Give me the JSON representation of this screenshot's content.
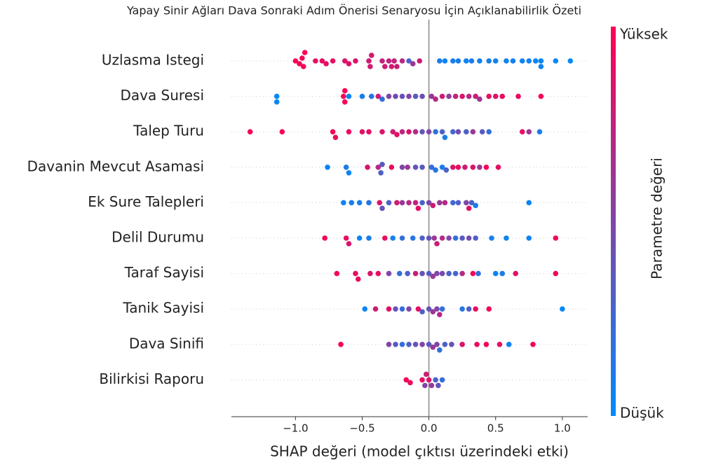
{
  "chart_data": {
    "type": "beeswarm",
    "title": "Yapay Sinir Ağları Dava Sonraki Adım Önerisi Senaryosu İçin Açıklanabilirlik Özeti",
    "x_label": "SHAP değeri (model çıktısı üzerindeki etki)",
    "xlim": [
      -1.48,
      1.19
    ],
    "xticks": [
      {
        "value": -1,
        "label": "−1.0"
      },
      {
        "value": -0.5,
        "label": "−0.5"
      },
      {
        "value": 0,
        "label": "0.0"
      },
      {
        "value": 0.5,
        "label": "0.5"
      },
      {
        "value": 1,
        "label": "1.0"
      }
    ],
    "categories": [
      "Uzlasma Istegi",
      "Dava Suresi",
      "Talep Turu",
      "Davanin Mevcut Asamasi",
      "Ek Sure Talepleri",
      "Delil Durumu",
      "Taraf Sayisi",
      "Tanik Sayisi",
      "Dava Sinifi",
      "Bilirkisi Raporu"
    ],
    "values": [
      [
        -1.0,
        -0.97,
        -0.95,
        -0.94,
        -0.93,
        -0.85,
        -0.8,
        -0.77,
        -0.72,
        -0.63,
        -0.6,
        -0.55,
        -0.45,
        -0.44,
        -0.43,
        -0.35,
        -0.33,
        -0.3,
        -0.28,
        -0.26,
        -0.24,
        -0.2,
        -0.15,
        -0.12,
        -0.07,
        0.08,
        0.12,
        0.18,
        0.22,
        0.28,
        0.32,
        0.38,
        0.45,
        0.5,
        0.58,
        0.63,
        0.7,
        0.75,
        0.8,
        0.84,
        0.84,
        0.95,
        1.06
      ],
      [
        -1.14,
        -1.14,
        -0.64,
        -0.63,
        -0.63,
        -0.6,
        -0.5,
        -0.43,
        -0.38,
        -0.35,
        -0.3,
        -0.25,
        -0.2,
        -0.15,
        -0.1,
        -0.05,
        0.02,
        0.05,
        0.1,
        0.15,
        0.2,
        0.25,
        0.3,
        0.35,
        0.38,
        0.45,
        0.5,
        0.55,
        0.67,
        0.84
      ],
      [
        -1.34,
        -1.1,
        -0.72,
        -0.7,
        -0.6,
        -0.5,
        -0.45,
        -0.35,
        -0.27,
        -0.24,
        -0.2,
        -0.15,
        -0.1,
        -0.05,
        0.0,
        0.05,
        0.1,
        0.12,
        0.18,
        0.22,
        0.28,
        0.33,
        0.4,
        0.45,
        0.7,
        0.75,
        0.83
      ],
      [
        -0.76,
        -0.62,
        -0.6,
        -0.46,
        -0.38,
        -0.36,
        -0.35,
        -0.28,
        -0.2,
        -0.16,
        -0.1,
        -0.05,
        0.02,
        0.05,
        0.1,
        0.13,
        0.18,
        0.22,
        0.27,
        0.33,
        0.38,
        0.43,
        0.52
      ],
      [
        -0.64,
        -0.58,
        -0.52,
        -0.45,
        -0.37,
        -0.35,
        -0.3,
        -0.24,
        -0.2,
        -0.15,
        -0.1,
        -0.08,
        -0.05,
        0.0,
        0.03,
        0.08,
        0.12,
        0.18,
        0.22,
        0.28,
        0.3,
        0.32,
        0.35,
        0.75
      ],
      [
        -0.78,
        -0.62,
        -0.6,
        -0.52,
        -0.45,
        -0.33,
        -0.27,
        -0.2,
        -0.12,
        -0.05,
        0.0,
        0.04,
        0.06,
        0.1,
        0.15,
        0.2,
        0.25,
        0.3,
        0.35,
        0.47,
        0.58,
        0.75,
        0.95
      ],
      [
        -0.69,
        -0.55,
        -0.53,
        -0.44,
        -0.38,
        -0.3,
        -0.22,
        -0.16,
        -0.1,
        -0.05,
        0.0,
        0.03,
        0.06,
        0.1,
        0.15,
        0.2,
        0.25,
        0.33,
        0.37,
        0.5,
        0.55,
        0.65,
        0.95
      ],
      [
        -0.48,
        -0.4,
        -0.3,
        -0.25,
        -0.2,
        -0.15,
        -0.08,
        -0.05,
        0.0,
        0.03,
        0.06,
        0.08,
        0.1,
        0.25,
        0.3,
        0.35,
        0.45,
        1.0
      ],
      [
        -0.66,
        -0.3,
        -0.25,
        -0.2,
        -0.15,
        -0.1,
        -0.05,
        0.0,
        0.03,
        0.06,
        0.08,
        0.12,
        0.17,
        0.25,
        0.36,
        0.43,
        0.53,
        0.6,
        0.78
      ],
      [
        -0.17,
        -0.14,
        -0.05,
        -0.03,
        0.0,
        0.02,
        0.05,
        0.07,
        0.1,
        -0.02
      ]
    ],
    "feature_values": [
      [
        0.98,
        0.95,
        0.97,
        0.96,
        0.99,
        0.9,
        0.92,
        0.88,
        0.9,
        0.85,
        0.87,
        0.85,
        0.82,
        0.8,
        0.84,
        0.78,
        0.8,
        0.75,
        0.82,
        0.77,
        0.79,
        0.72,
        0.3,
        0.6,
        0.8,
        0.1,
        0.05,
        0.08,
        0.1,
        0.05,
        0.12,
        0.08,
        0.1,
        0.06,
        0.05,
        0.08,
        0.04,
        0.06,
        0.02,
        0.03,
        0.05,
        0.02,
        0.01
      ],
      [
        0.02,
        0.03,
        0.98,
        0.97,
        0.99,
        0.05,
        0.1,
        0.15,
        0.8,
        0.2,
        0.5,
        0.45,
        0.4,
        0.5,
        0.35,
        0.4,
        0.6,
        0.7,
        0.8,
        0.55,
        0.75,
        0.85,
        0.7,
        0.8,
        0.6,
        0.9,
        0.88,
        0.92,
        0.9,
        0.95
      ],
      [
        0.98,
        0.97,
        0.95,
        0.9,
        0.92,
        0.88,
        0.9,
        0.85,
        0.8,
        0.9,
        0.75,
        0.85,
        0.7,
        0.4,
        0.5,
        0.2,
        0.3,
        0.1,
        0.25,
        0.45,
        0.3,
        0.6,
        0.35,
        0.2,
        0.9,
        0.6,
        0.1
      ],
      [
        0.05,
        0.1,
        0.05,
        0.85,
        0.7,
        0.3,
        0.35,
        0.9,
        0.5,
        0.6,
        0.4,
        0.35,
        0.2,
        0.15,
        0.1,
        0.3,
        0.85,
        0.9,
        0.8,
        0.85,
        0.6,
        0.95,
        0.9
      ],
      [
        0.05,
        0.1,
        0.08,
        0.15,
        0.85,
        0.4,
        0.3,
        0.8,
        0.6,
        0.7,
        0.75,
        0.9,
        0.3,
        0.5,
        0.8,
        0.6,
        0.7,
        0.25,
        0.3,
        0.5,
        0.85,
        0.3,
        0.1,
        0.05
      ],
      [
        0.95,
        0.9,
        0.85,
        0.05,
        0.1,
        0.9,
        0.08,
        0.2,
        0.15,
        0.3,
        0.4,
        0.6,
        0.8,
        0.7,
        0.5,
        0.2,
        0.35,
        0.45,
        0.3,
        0.1,
        0.05,
        0.05,
        0.95
      ],
      [
        0.95,
        0.9,
        0.92,
        0.85,
        0.9,
        0.5,
        0.2,
        0.3,
        0.8,
        0.4,
        0.35,
        0.6,
        0.5,
        0.45,
        0.3,
        0.25,
        0.7,
        0.95,
        0.2,
        0.05,
        0.1,
        0.9,
        0.95
      ],
      [
        0.05,
        0.8,
        0.9,
        0.4,
        0.2,
        0.5,
        0.9,
        0.3,
        0.4,
        0.6,
        0.5,
        0.7,
        0.2,
        0.15,
        0.3,
        0.9,
        0.95,
        0.02
      ],
      [
        0.95,
        0.5,
        0.35,
        0.2,
        0.3,
        0.4,
        0.5,
        0.35,
        0.6,
        0.5,
        0.2,
        0.3,
        0.4,
        0.85,
        0.9,
        0.95,
        0.9,
        0.05,
        0.95
      ],
      [
        0.95,
        0.92,
        0.9,
        0.5,
        0.85,
        0.6,
        0.3,
        0.4,
        0.2,
        0.8
      ]
    ],
    "colors": [
      "#008bfb",
      "#ff0052"
    ],
    "colorbar": {
      "high": "Yüksek",
      "low": "Düşük",
      "label": "Parametre değeri"
    }
  }
}
